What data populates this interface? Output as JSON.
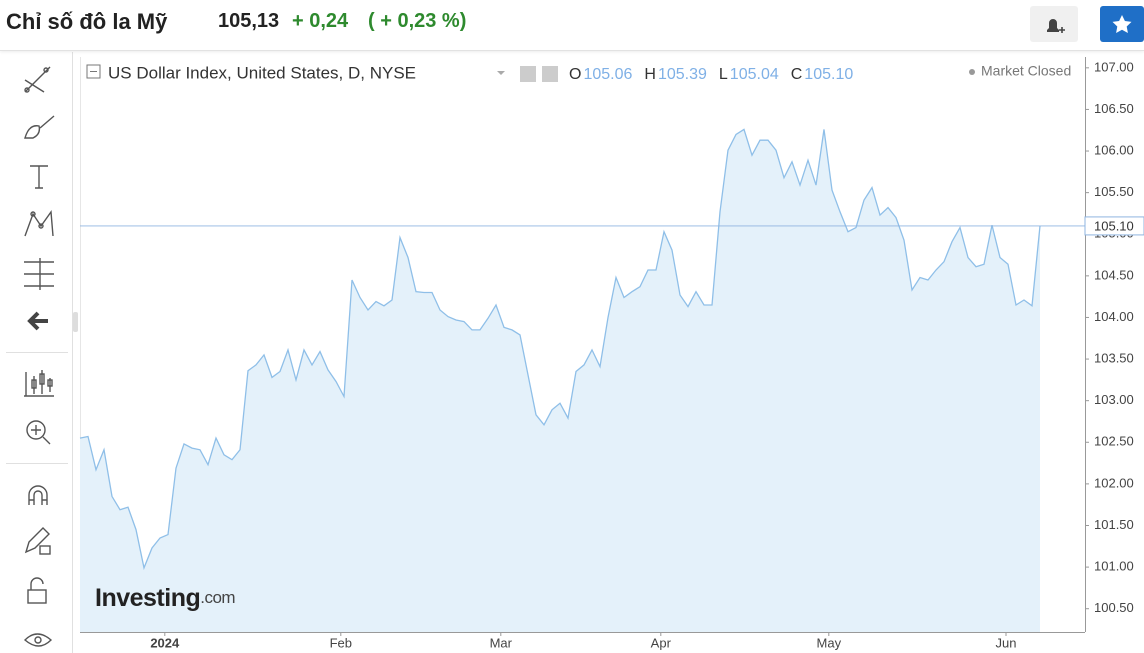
{
  "header": {
    "title": "Chỉ số đô la Mỹ",
    "price": "105,13",
    "change": "+ 0,24",
    "change_pct": "( + 0,23 %)"
  },
  "chart_data": {
    "type": "area",
    "legend_title": "US Dollar Index, United States, D, NYSE",
    "ohlc": [
      {
        "name": "O",
        "value": 105.06
      },
      {
        "name": "H",
        "value": 105.39
      },
      {
        "name": "L",
        "value": 105.04
      },
      {
        "name": "C",
        "value": 105.1,
        "label": "105.10"
      }
    ],
    "status": "Market Closed",
    "brand": "Investing",
    "brand_suffix": ".com",
    "color": "#8fbfe8",
    "fill": "#e4f1fa",
    "values": [
      102.55,
      102.57,
      102.17,
      102.41,
      101.85,
      101.69,
      101.72,
      101.45,
      100.99,
      101.23,
      101.35,
      101.39,
      102.19,
      102.48,
      102.43,
      102.41,
      102.23,
      102.55,
      102.35,
      102.29,
      102.41,
      103.36,
      103.43,
      103.55,
      103.28,
      103.35,
      103.61,
      103.25,
      103.61,
      103.43,
      103.59,
      103.37,
      103.23,
      103.05,
      104.45,
      104.24,
      104.09,
      104.19,
      104.14,
      104.21,
      104.96,
      104.72,
      104.31,
      104.3,
      104.3,
      104.09,
      104.01,
      103.97,
      103.95,
      103.85,
      103.85,
      103.99,
      104.15,
      103.88,
      103.85,
      103.79,
      103.31,
      102.83,
      102.71,
      102.89,
      102.97,
      102.79,
      103.35,
      103.43,
      103.61,
      103.41,
      104.0,
      104.48,
      104.24,
      104.31,
      104.37,
      104.57,
      104.57,
      105.03,
      104.81,
      104.27,
      104.13,
      104.31,
      104.15,
      104.15,
      105.27,
      106.01,
      106.2,
      106.26,
      105.95,
      106.13,
      106.13,
      106.01,
      105.68,
      105.87,
      105.59,
      105.89,
      105.59,
      106.26,
      105.53,
      105.27,
      105.03,
      105.08,
      105.41,
      105.56,
      105.23,
      105.32,
      105.2,
      104.93,
      104.33,
      104.48,
      104.45,
      104.57,
      104.67,
      104.91,
      105.08,
      104.72,
      104.61,
      104.64,
      105.11,
      104.72,
      104.64,
      104.15,
      104.21,
      104.14,
      105.1
    ],
    "xlim": [
      0,
      125.625
    ],
    "xticks": [
      {
        "value": 10.6,
        "label": "2024"
      },
      {
        "value": 32.6,
        "label": "Feb"
      },
      {
        "value": 52.6,
        "label": "Mar"
      },
      {
        "value": 72.6,
        "label": "Apr"
      },
      {
        "value": 93.6,
        "label": "May"
      },
      {
        "value": 115.75,
        "label": "Jun"
      }
    ],
    "ylim": [
      100.22,
      107.13
    ],
    "yticks": [
      {
        "value": 100.5,
        "label": "100.50"
      },
      {
        "value": 101,
        "label": "101.00"
      },
      {
        "value": 101.5,
        "label": "101.50"
      },
      {
        "value": 102,
        "label": "102.00"
      },
      {
        "value": 102.5,
        "label": "102.50"
      },
      {
        "value": 103,
        "label": "103.00"
      },
      {
        "value": 103.5,
        "label": "103.50"
      },
      {
        "value": 104,
        "label": "104.00"
      },
      {
        "value": 104.5,
        "label": "104.50"
      },
      {
        "value": 105,
        "label": "105.00"
      },
      {
        "value": 105.5,
        "label": "105.50"
      },
      {
        "value": 106,
        "label": "106.00"
      },
      {
        "value": 106.5,
        "label": "106.50"
      },
      {
        "value": 107,
        "label": "107.00"
      }
    ],
    "last_price": {
      "value": 105.1,
      "label": "105.10"
    }
  }
}
